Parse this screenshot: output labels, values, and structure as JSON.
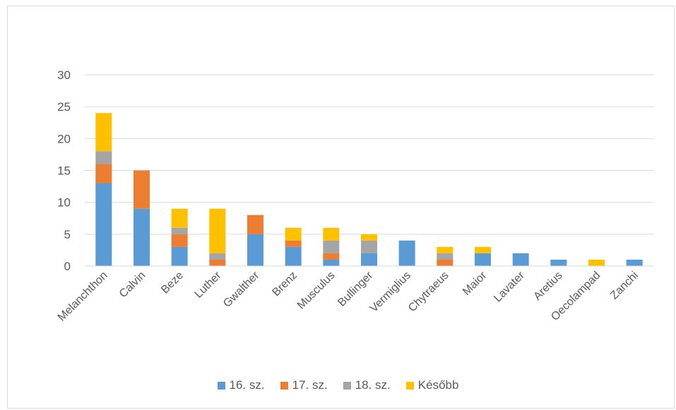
{
  "chart_data": {
    "type": "bar",
    "stacked": true,
    "categories": [
      "Melanchthon",
      "Calvin",
      "Beze",
      "Luther",
      "Gwalther",
      "Brenz",
      "Musculus",
      "Bullinger",
      "Vermiglius",
      "Chytraeus",
      "Maior",
      "Lavater",
      "Aretius",
      "Oecolampad",
      "Zanchi"
    ],
    "series": [
      {
        "name": "16. sz.",
        "color": "#5b9bd5",
        "values": [
          13,
          9,
          3,
          0,
          5,
          3,
          1,
          2,
          4,
          0,
          2,
          2,
          1,
          0,
          1
        ]
      },
      {
        "name": "17. sz.",
        "color": "#ed7d31",
        "values": [
          3,
          6,
          2,
          1,
          3,
          1,
          1,
          0,
          0,
          1,
          0,
          0,
          0,
          0,
          0
        ]
      },
      {
        "name": "18. sz.",
        "color": "#a5a5a5",
        "values": [
          2,
          0,
          1,
          1,
          0,
          0,
          2,
          2,
          0,
          1,
          0,
          0,
          0,
          0,
          0
        ]
      },
      {
        "name": "Később",
        "color": "#ffc000",
        "values": [
          6,
          0,
          3,
          7,
          0,
          2,
          2,
          1,
          0,
          1,
          1,
          0,
          0,
          1,
          0
        ]
      }
    ],
    "yticks": [
      "0",
      "5",
      "10",
      "15",
      "20",
      "25",
      "30"
    ],
    "ylim": [
      0,
      30
    ],
    "grid": true,
    "legend_position": "bottom"
  }
}
